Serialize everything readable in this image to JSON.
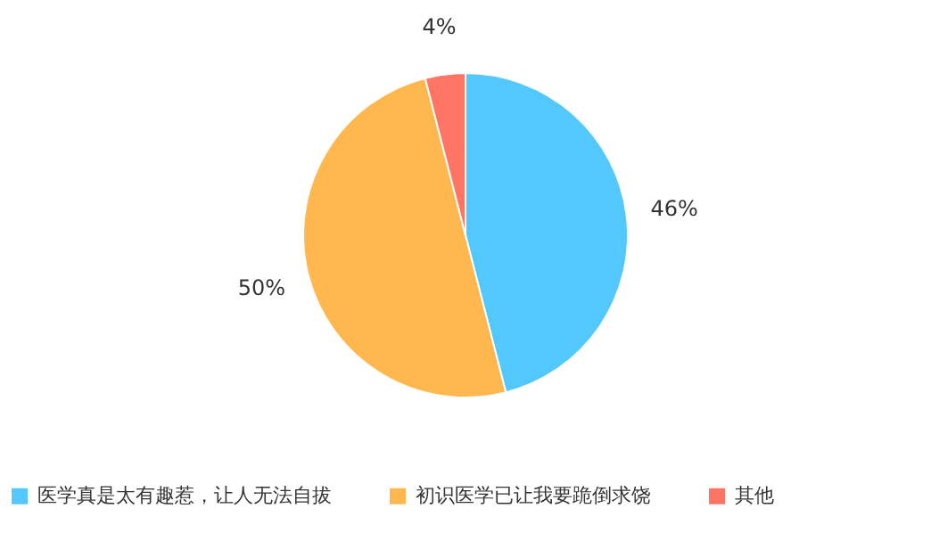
{
  "chart_data": {
    "type": "pie",
    "categories": [
      "医学真是太有趣惹，让人无法自拔",
      "初识医学已让我要跪倒求饶",
      "其他"
    ],
    "values": [
      46,
      50,
      4
    ],
    "colors": [
      "#52c8fd",
      "#ffb74e",
      "#ff7463"
    ],
    "value_labels": [
      "46%",
      "50%",
      "4%"
    ],
    "legend": "bottom"
  }
}
